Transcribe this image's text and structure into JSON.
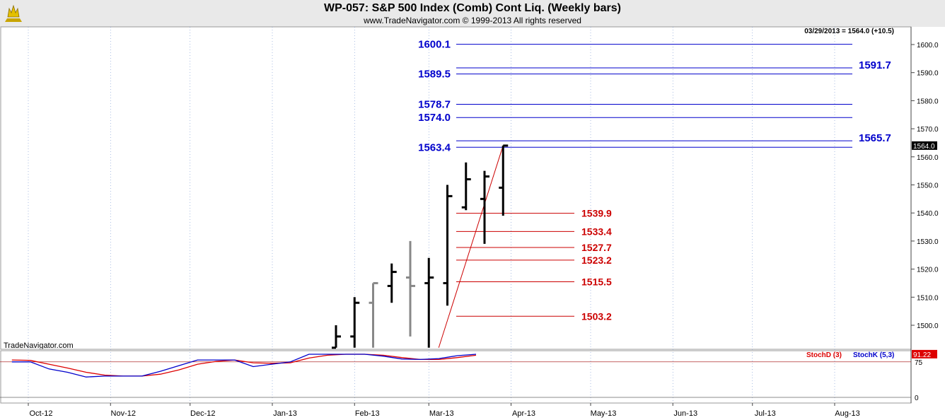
{
  "header": {
    "title": "WP-057:  S&P 500 Index (Comb) Cont Liq.  (Weekly bars)",
    "subtitle": "www.TradeNavigator.com © 1999-2013 All rights reserved",
    "last_info": "03/29/2013 = 1564.0 (+10.5)",
    "brand": "TradeNavigator.com",
    "logo": "bull-bear-logo"
  },
  "colors": {
    "blue_levels": "#0000cc",
    "red_levels": "#cc0000",
    "stoch_d": "#dd0000",
    "stoch_k": "#0000cc",
    "header_bg": "#e9e9e9"
  },
  "chart_data": [
    {
      "type": "ohlc",
      "ylim": [
        1490,
        1610
      ],
      "x_tick_labels": [
        "Oct-12",
        "Nov-12",
        "Dec-12",
        "Jan-13",
        "Feb-13",
        "Mar-13",
        "Apr-13",
        "May-13",
        "Jun-13",
        "Jul-13",
        "Aug-13"
      ],
      "y_tick_labels": [
        "1500.0",
        "1510.0",
        "1520.0",
        "1530.0",
        "1540.0",
        "1550.0",
        "1560.0",
        "1570.0",
        "1580.0",
        "1590.0",
        "1600.0"
      ],
      "last_price_label": "1564.0",
      "bars": [
        {
          "date": "2013-01-25",
          "open": 1492,
          "high": 1500,
          "low": 1492,
          "close": 1496,
          "color": "black"
        },
        {
          "date": "2013-02-01",
          "open": 1496,
          "high": 1510,
          "low": 1492,
          "close": 1508,
          "color": "black"
        },
        {
          "date": "2013-02-08",
          "open": 1508,
          "high": 1515,
          "low": 1492,
          "close": 1515,
          "color": "gray"
        },
        {
          "date": "2013-02-15",
          "open": 1514,
          "high": 1522,
          "low": 1508,
          "close": 1519,
          "color": "black"
        },
        {
          "date": "2013-02-22",
          "open": 1517,
          "high": 1530,
          "low": 1496,
          "close": 1514,
          "color": "gray"
        },
        {
          "date": "2013-03-01",
          "open": 1515,
          "high": 1524,
          "low": 1492,
          "close": 1517,
          "color": "black"
        },
        {
          "date": "2013-03-08",
          "open": 1515,
          "high": 1550,
          "low": 1507,
          "close": 1546,
          "color": "black"
        },
        {
          "date": "2013-03-15",
          "open": 1542,
          "high": 1558,
          "low": 1541,
          "close": 1552,
          "color": "black"
        },
        {
          "date": "2013-03-22",
          "open": 1545,
          "high": 1555,
          "low": 1529,
          "close": 1553,
          "color": "black"
        },
        {
          "date": "2013-03-29",
          "open": 1549,
          "high": 1564,
          "low": 1539,
          "close": 1564,
          "color": "black"
        }
      ],
      "blue_levels": [
        {
          "label": "1600.1",
          "value": 1600.1,
          "side": "left"
        },
        {
          "label": "1591.7",
          "value": 1591.7,
          "side": "right"
        },
        {
          "label": "1589.5",
          "value": 1589.5,
          "side": "left"
        },
        {
          "label": "1578.7",
          "value": 1578.7,
          "side": "left"
        },
        {
          "label": "1574.0",
          "value": 1574.0,
          "side": "left"
        },
        {
          "label": "1565.7",
          "value": 1565.7,
          "side": "right"
        },
        {
          "label": "1563.4",
          "value": 1563.4,
          "side": "left"
        }
      ],
      "red_levels": [
        {
          "label": "1539.9",
          "value": 1539.9
        },
        {
          "label": "1533.4",
          "value": 1533.4
        },
        {
          "label": "1527.7",
          "value": 1527.7
        },
        {
          "label": "1523.2",
          "value": 1523.2
        },
        {
          "label": "1515.5",
          "value": 1515.5
        },
        {
          "label": "1503.2",
          "value": 1503.2
        }
      ],
      "trend_line": {
        "from": {
          "date": "2013-03-01",
          "value": 1492
        },
        "to": {
          "date": "2013-03-29",
          "value": 1564
        }
      }
    },
    {
      "type": "line",
      "ylim": [
        0,
        100
      ],
      "y_tick_labels": [
        "75",
        "0"
      ],
      "last_value_labels": [
        "91.22"
      ],
      "series": [
        {
          "name": "StochD (3)",
          "color": "red",
          "values": [
            79,
            78,
            70,
            62,
            53,
            47,
            45,
            45,
            49,
            58,
            70,
            76,
            79,
            73,
            72,
            73,
            83,
            89,
            91,
            91,
            89,
            84,
            80,
            80,
            84,
            89
          ]
        },
        {
          "name": "StochK (5,3)",
          "color": "blue",
          "values": [
            75,
            75,
            60,
            53,
            43,
            45,
            45,
            45,
            55,
            67,
            79,
            79,
            79,
            65,
            70,
            75,
            91,
            91,
            91,
            91,
            87,
            81,
            80,
            82,
            88,
            91
          ]
        }
      ],
      "x_dates_start": "2012-09-28",
      "x_step": "weekly"
    }
  ]
}
